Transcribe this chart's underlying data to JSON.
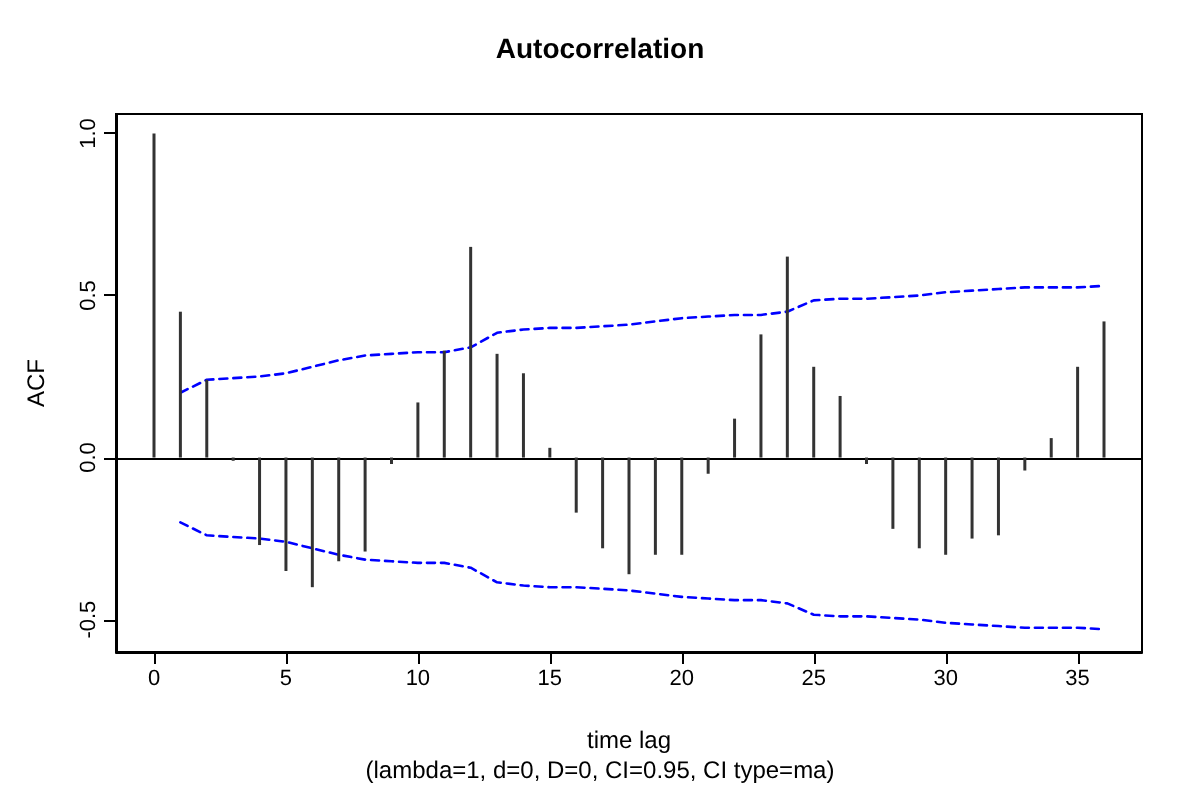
{
  "chart_data": {
    "type": "bar",
    "title": "Autocorrelation",
    "xlabel": "time lag",
    "ylabel": "ACF",
    "annotations": [
      "(lambda=1, d=0, D=0, CI=0.95, CI type=ma)"
    ],
    "x": [
      0,
      1,
      2,
      3,
      4,
      5,
      6,
      7,
      8,
      9,
      10,
      11,
      12,
      13,
      14,
      15,
      16,
      17,
      18,
      19,
      20,
      21,
      22,
      23,
      24,
      25,
      26,
      27,
      28,
      29,
      30,
      31,
      32,
      33,
      34,
      35,
      36
    ],
    "series": [
      {
        "color": "#333333",
        "values": [
          1.0,
          0.45,
          0.24,
          -0.01,
          -0.27,
          -0.35,
          -0.4,
          -0.32,
          -0.29,
          -0.02,
          0.17,
          0.33,
          0.65,
          0.32,
          0.26,
          0.03,
          -0.17,
          -0.28,
          -0.36,
          -0.3,
          -0.3,
          -0.05,
          0.12,
          0.38,
          0.62,
          0.28,
          0.19,
          -0.02,
          -0.22,
          -0.28,
          -0.3,
          -0.25,
          -0.24,
          -0.04,
          0.06,
          0.28,
          0.42
        ]
      },
      {
        "type": "line",
        "color": "#0000ff",
        "line_style": "dashed",
        "x": [
          1,
          2,
          3,
          4,
          5,
          6,
          7,
          8,
          9,
          10,
          11,
          12,
          13,
          14,
          15,
          16,
          17,
          18,
          19,
          20,
          21,
          22,
          23,
          24,
          25,
          26,
          27,
          28,
          29,
          30,
          31,
          32,
          33,
          34,
          35,
          36
        ],
        "values": [
          0.2,
          0.24,
          0.245,
          0.25,
          0.26,
          0.28,
          0.3,
          0.315,
          0.32,
          0.325,
          0.325,
          0.34,
          0.385,
          0.395,
          0.4,
          0.4,
          0.405,
          0.41,
          0.42,
          0.43,
          0.435,
          0.44,
          0.44,
          0.45,
          0.485,
          0.49,
          0.49,
          0.495,
          0.5,
          0.51,
          0.515,
          0.52,
          0.525,
          0.525,
          0.525,
          0.53
        ]
      },
      {
        "type": "line",
        "color": "#0000ff",
        "line_style": "dashed",
        "x": [
          1,
          2,
          3,
          4,
          5,
          6,
          7,
          8,
          9,
          10,
          11,
          12,
          13,
          14,
          15,
          16,
          17,
          18,
          19,
          20,
          21,
          22,
          23,
          24,
          25,
          26,
          27,
          28,
          29,
          30,
          31,
          32,
          33,
          34,
          35,
          36
        ],
        "values": [
          -0.2,
          -0.24,
          -0.245,
          -0.25,
          -0.26,
          -0.28,
          -0.3,
          -0.315,
          -0.32,
          -0.325,
          -0.325,
          -0.34,
          -0.385,
          -0.395,
          -0.4,
          -0.4,
          -0.405,
          -0.41,
          -0.42,
          -0.43,
          -0.435,
          -0.44,
          -0.44,
          -0.45,
          -0.485,
          -0.49,
          -0.49,
          -0.495,
          -0.5,
          -0.51,
          -0.515,
          -0.52,
          -0.525,
          -0.525,
          -0.525,
          -0.53
        ]
      }
    ],
    "xlim": [
      -1.44,
      37.44
    ],
    "ylim": [
      -0.6,
      1.06
    ],
    "xticks": [
      0,
      5,
      10,
      15,
      20,
      25,
      30,
      35
    ],
    "yticks": [
      -0.5,
      {
        "value": 0,
        "label": "0.0"
      },
      0.5,
      {
        "value": 1,
        "label": "1.0"
      }
    ],
    "ref_lines": [
      {
        "axis": "y",
        "value": 0,
        "color": "#000000"
      }
    ],
    "grid": false,
    "marker": "none"
  }
}
